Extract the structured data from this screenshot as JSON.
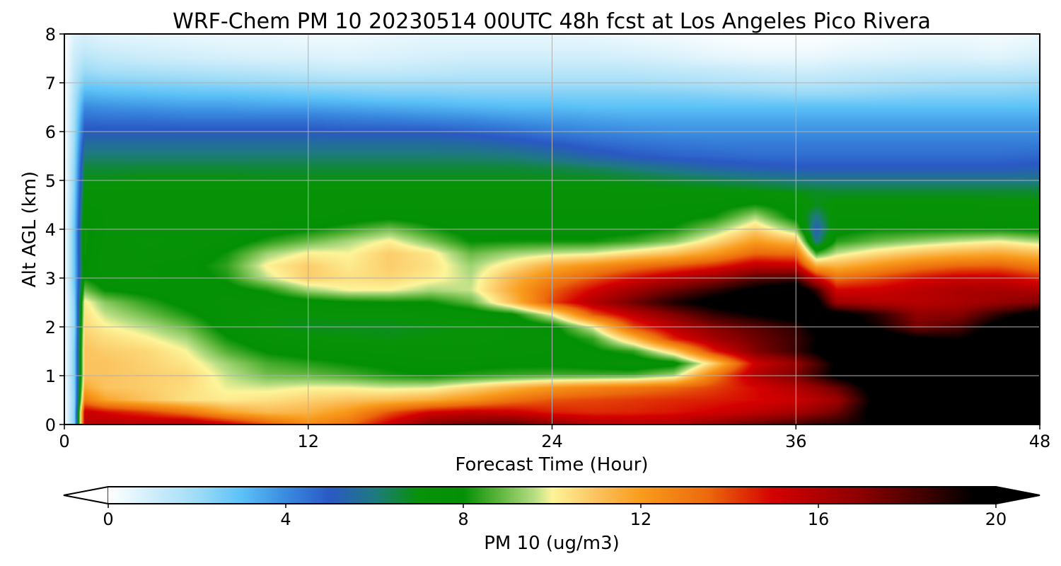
{
  "chart_data": {
    "type": "heatmap",
    "title": "WRF-Chem PM 10  20230514 00UTC 48h fcst at Los Angeles Pico Rivera",
    "xlabel": "Forecast Time (Hour)",
    "ylabel": "Alt AGL (km)",
    "xlim": [
      0,
      48
    ],
    "ylim": [
      0,
      8
    ],
    "xticks": [
      0,
      12,
      24,
      36,
      48
    ],
    "yticks": [
      0,
      1,
      2,
      3,
      4,
      5,
      6,
      7,
      8
    ],
    "grid": true,
    "x": [
      0,
      0.5,
      1,
      2,
      4,
      6,
      8,
      10,
      12,
      14,
      16,
      18,
      20,
      22,
      24,
      26,
      28,
      30,
      32,
      34,
      36,
      37,
      38,
      40,
      42,
      44,
      46,
      48
    ],
    "y": [
      0,
      0.25,
      0.5,
      0.75,
      1,
      1.25,
      1.5,
      1.75,
      2,
      2.25,
      2.5,
      2.75,
      3,
      3.25,
      3.5,
      3.75,
      4,
      4.25,
      4.5,
      4.75,
      5,
      5.25,
      5.5,
      5.75,
      6,
      6.25,
      6.5,
      6.75,
      7,
      7.25,
      7.5,
      7.75,
      8
    ],
    "z": [
      [
        0.0,
        2.4,
        15.6,
        15.9,
        16.0,
        16.3,
        15.3,
        13.8,
        12.5,
        13.3,
        15.3,
        17.1,
        17.6,
        17.9,
        16.9,
        16.1,
        15.9,
        16.0,
        16.8,
        17.7,
        18.3,
        18.7,
        18.9,
        19.6,
        20.6,
        20.9,
        20.6,
        20.6
      ],
      [
        0.0,
        2.4,
        15.4,
        14.9,
        14.2,
        13.2,
        11.8,
        11.2,
        11.4,
        12.2,
        13.8,
        15.0,
        15.4,
        15.2,
        14.6,
        14.4,
        14.5,
        14.7,
        15.1,
        15.6,
        16.3,
        16.8,
        17.5,
        20.2,
        21.1,
        20.8,
        20.5,
        20.6
      ],
      [
        0.0,
        2.3,
        12.9,
        11.8,
        11.0,
        10.4,
        10.2,
        10.4,
        10.7,
        11.0,
        11.2,
        11.6,
        12.3,
        13.2,
        13.8,
        14.0,
        14.2,
        14.4,
        14.6,
        14.9,
        15.3,
        15.8,
        16.5,
        20.0,
        21.0,
        20.8,
        20.5,
        20.5
      ],
      [
        0.0,
        2.4,
        11.7,
        11.0,
        10.8,
        10.5,
        9.9,
        9.8,
        10.0,
        10.0,
        9.8,
        9.9,
        10.6,
        11.4,
        12.2,
        12.7,
        13.1,
        13.5,
        14.1,
        14.9,
        15.9,
        16.7,
        17.6,
        20.4,
        21.1,
        20.8,
        20.6,
        20.6
      ],
      [
        0.0,
        2.5,
        11.0,
        11.0,
        10.8,
        10.6,
        9.7,
        9.0,
        8.9,
        8.6,
        8.2,
        8.0,
        8.3,
        8.5,
        8.6,
        8.6,
        8.7,
        9.5,
        13.1,
        15.9,
        17.3,
        18.5,
        19.8,
        21.2,
        21.1,
        20.8,
        20.6,
        20.6
      ],
      [
        0.0,
        2.5,
        11.0,
        11.0,
        10.7,
        10.3,
        9.4,
        8.6,
        8.3,
        8.0,
        7.8,
        7.6,
        7.7,
        7.8,
        7.8,
        7.6,
        7.2,
        7.6,
        10.8,
        15.2,
        16.7,
        18.1,
        19.7,
        21.0,
        21.0,
        20.8,
        20.6,
        20.6
      ],
      [
        0.0,
        2.5,
        11.0,
        10.8,
        10.6,
        10.0,
        8.7,
        7.9,
        7.6,
        7.5,
        7.4,
        7.3,
        7.2,
        7.3,
        7.5,
        7.8,
        8.4,
        10.8,
        14.6,
        17.1,
        18.5,
        19.6,
        21.1,
        21.0,
        20.8,
        20.8,
        20.6,
        20.6
      ],
      [
        0.0,
        2.4,
        10.8,
        10.5,
        10.1,
        9.5,
        8.1,
        7.3,
        7.1,
        7.0,
        6.9,
        7.0,
        7.1,
        7.2,
        7.5,
        8.4,
        11.1,
        14.5,
        16.3,
        17.5,
        18.5,
        19.4,
        20.4,
        20.8,
        19.7,
        19.4,
        20.5,
        20.5
      ],
      [
        0.0,
        2.3,
        10.6,
        10.1,
        9.6,
        8.9,
        7.6,
        7.0,
        6.8,
        6.8,
        6.8,
        6.9,
        7.0,
        7.2,
        7.7,
        9.9,
        14.0,
        15.8,
        17.1,
        17.9,
        18.7,
        19.9,
        20.1,
        19.3,
        17.4,
        18.1,
        20.3,
        20.5
      ],
      [
        0.0,
        2.3,
        10.4,
        9.7,
        9.0,
        8.2,
        7.4,
        7.0,
        7.0,
        7.1,
        7.1,
        7.2,
        7.3,
        7.8,
        10.0,
        13.7,
        15.6,
        17.1,
        18.6,
        19.5,
        20.3,
        20.3,
        20.2,
        18.8,
        16.8,
        17.0,
        18.8,
        20.3
      ],
      [
        0.0,
        2.4,
        10.2,
        9.2,
        8.4,
        7.7,
        7.4,
        7.3,
        7.6,
        7.9,
        8.0,
        8.0,
        8.8,
        11.1,
        14.0,
        15.9,
        17.5,
        19.0,
        20.1,
        20.7,
        21.1,
        20.1,
        16.4,
        15.9,
        15.8,
        16.1,
        16.6,
        17.2
      ],
      [
        0.0,
        2.6,
        9.0,
        8.0,
        7.7,
        7.5,
        7.6,
        8.2,
        9.4,
        10.0,
        10.0,
        9.5,
        9.7,
        11.6,
        13.6,
        15.0,
        16.4,
        17.6,
        18.7,
        19.8,
        20.8,
        18.6,
        15.0,
        15.2,
        15.7,
        16.1,
        16.2,
        16.0
      ],
      [
        0.0,
        2.8,
        8.0,
        7.4,
        7.4,
        7.6,
        8.2,
        9.7,
        10.8,
        10.4,
        10.6,
        10.2,
        9.6,
        11.3,
        12.7,
        13.8,
        14.9,
        15.8,
        16.7,
        18.0,
        18.3,
        15.1,
        13.3,
        14.0,
        14.8,
        15.3,
        15.3,
        14.5
      ],
      [
        0.0,
        2.8,
        7.9,
        7.3,
        7.5,
        7.7,
        8.4,
        10.1,
        10.8,
        10.2,
        10.8,
        10.4,
        9.4,
        10.4,
        11.6,
        12.3,
        13.1,
        13.7,
        14.4,
        15.6,
        15.4,
        11.6,
        11.4,
        12.2,
        13.0,
        13.5,
        13.6,
        12.9
      ],
      [
        0.0,
        2.8,
        8.1,
        7.3,
        7.2,
        7.4,
        8.1,
        9.4,
        10.1,
        10.0,
        10.8,
        10.3,
        8.9,
        9.4,
        9.7,
        9.9,
        10.5,
        11.1,
        12.1,
        13.5,
        13.3,
        8.5,
        9.7,
        10.5,
        11.1,
        11.5,
        11.7,
        11.2
      ],
      [
        0.0,
        2.8,
        8.1,
        7.4,
        7.1,
        7.2,
        7.5,
        8.3,
        8.9,
        9.5,
        10.1,
        9.1,
        8.0,
        8.1,
        8.1,
        8.1,
        8.5,
        9.2,
        10.5,
        12.0,
        11.2,
        5.8,
        8.3,
        8.9,
        9.3,
        9.7,
        10.0,
        9.5
      ],
      [
        0.0,
        2.8,
        8.1,
        7.5,
        7.3,
        7.3,
        7.3,
        7.6,
        7.9,
        8.4,
        9.0,
        8.2,
        7.6,
        7.6,
        7.6,
        7.6,
        7.7,
        8.1,
        9.2,
        10.7,
        9.1,
        5.1,
        7.7,
        8.0,
        8.0,
        8.0,
        8.0,
        7.8
      ],
      [
        0.0,
        2.7,
        7.8,
        7.5,
        7.5,
        7.5,
        7.4,
        7.4,
        7.4,
        7.6,
        7.8,
        7.6,
        7.6,
        7.6,
        7.6,
        7.6,
        7.6,
        7.7,
        8.1,
        9.5,
        7.7,
        5.9,
        7.5,
        7.5,
        7.3,
        7.3,
        7.4,
        7.4
      ],
      [
        0.0,
        2.6,
        7.5,
        7.4,
        7.4,
        7.4,
        7.4,
        7.4,
        7.4,
        7.4,
        7.4,
        7.4,
        7.4,
        7.4,
        7.4,
        7.4,
        7.4,
        7.5,
        7.6,
        8.1,
        7.5,
        6.8,
        7.2,
        7.2,
        7.2,
        7.2,
        7.1,
        7.1
      ],
      [
        0.0,
        2.5,
        7.2,
        7.2,
        7.2,
        7.2,
        7.2,
        7.2,
        7.2,
        7.2,
        7.2,
        7.2,
        7.2,
        7.2,
        7.2,
        7.2,
        7.2,
        7.2,
        7.2,
        7.1,
        6.9,
        6.8,
        6.7,
        6.7,
        6.7,
        6.7,
        6.7,
        6.7
      ],
      [
        0.0,
        2.4,
        6.9,
        6.9,
        7.0,
        7.0,
        7.0,
        6.9,
        6.9,
        6.9,
        6.9,
        6.9,
        6.9,
        6.9,
        6.9,
        6.9,
        6.8,
        6.6,
        6.4,
        6.2,
        6.0,
        5.9,
        5.9,
        5.9,
        5.9,
        5.9,
        5.9,
        5.9
      ],
      [
        0.0,
        2.3,
        6.6,
        6.6,
        6.6,
        6.6,
        6.6,
        6.6,
        6.6,
        6.6,
        6.6,
        6.6,
        6.6,
        6.6,
        6.5,
        6.3,
        6.0,
        5.7,
        5.4,
        5.2,
        5.1,
        5.1,
        5.1,
        5.1,
        5.1,
        5.1,
        5.1,
        5.2
      ],
      [
        0.0,
        2.2,
        6.1,
        6.1,
        6.1,
        6.1,
        6.1,
        6.1,
        6.1,
        6.1,
        6.1,
        6.1,
        6.1,
        6.0,
        5.7,
        5.3,
        5.0,
        4.8,
        4.7,
        4.6,
        4.6,
        4.6,
        4.6,
        4.6,
        4.6,
        4.6,
        4.6,
        4.7
      ],
      [
        0.0,
        2.1,
        5.6,
        5.6,
        5.6,
        5.6,
        5.6,
        5.6,
        5.6,
        5.6,
        5.6,
        5.6,
        5.5,
        5.3,
        5.0,
        4.7,
        4.5,
        4.4,
        4.3,
        4.3,
        4.3,
        4.3,
        4.3,
        4.3,
        4.3,
        4.3,
        4.3,
        4.3
      ],
      [
        0.0,
        2.0,
        5.1,
        5.1,
        5.1,
        5.1,
        5.1,
        5.1,
        5.1,
        5.0,
        5.0,
        5.0,
        4.8,
        4.6,
        4.3,
        4.1,
        4.0,
        3.9,
        3.9,
        3.9,
        3.9,
        3.9,
        3.9,
        3.9,
        3.9,
        3.9,
        3.9,
        3.9
      ],
      [
        0.0,
        1.9,
        4.6,
        4.5,
        4.5,
        4.4,
        4.4,
        4.4,
        4.4,
        4.3,
        4.2,
        4.1,
        4.0,
        3.8,
        3.7,
        3.6,
        3.5,
        3.5,
        3.5,
        3.5,
        3.5,
        3.5,
        3.5,
        3.5,
        3.5,
        3.5,
        3.5,
        3.5
      ],
      [
        0.0,
        1.8,
        4.0,
        3.9,
        3.8,
        3.7,
        3.7,
        3.6,
        3.6,
        3.5,
        3.4,
        3.3,
        3.2,
        3.1,
        3.1,
        3.0,
        3.0,
        3.0,
        3.0,
        3.0,
        3.0,
        3.0,
        3.0,
        3.0,
        3.0,
        3.0,
        3.0,
        3.0
      ],
      [
        0.0,
        1.7,
        3.3,
        3.2,
        3.1,
        3.0,
        3.0,
        2.9,
        2.8,
        2.7,
        2.6,
        2.6,
        2.5,
        2.5,
        2.5,
        2.5,
        2.5,
        2.5,
        2.4,
        2.3,
        2.2,
        2.2,
        2.2,
        2.3,
        2.4,
        2.4,
        2.4,
        2.5
      ],
      [
        0.0,
        1.5,
        2.6,
        2.5,
        2.4,
        2.3,
        2.2,
        2.1,
        2.0,
        1.9,
        1.9,
        1.9,
        1.9,
        1.9,
        1.9,
        1.9,
        1.9,
        1.8,
        1.7,
        1.6,
        1.5,
        1.5,
        1.6,
        1.7,
        1.8,
        1.9,
        1.9,
        2.0
      ],
      [
        0.0,
        1.3,
        2.0,
        1.8,
        1.7,
        1.6,
        1.5,
        1.4,
        1.3,
        1.2,
        1.2,
        1.3,
        1.4,
        1.4,
        1.4,
        1.4,
        1.4,
        1.3,
        1.2,
        1.1,
        1.0,
        1.0,
        1.1,
        1.2,
        1.3,
        1.3,
        1.3,
        1.4
      ],
      [
        0.0,
        1.1,
        1.5,
        1.3,
        1.1,
        1.0,
        0.9,
        0.8,
        0.8,
        0.7,
        0.8,
        0.9,
        1.0,
        1.0,
        1.0,
        1.0,
        0.9,
        0.8,
        0.6,
        0.5,
        0.5,
        0.5,
        0.6,
        0.7,
        0.8,
        0.8,
        0.7,
        0.9
      ],
      [
        0.0,
        0.9,
        1.1,
        0.9,
        0.8,
        0.7,
        0.6,
        0.6,
        0.5,
        0.5,
        0.6,
        0.7,
        0.7,
        0.7,
        0.7,
        0.7,
        0.6,
        0.5,
        0.3,
        0.2,
        0.2,
        0.2,
        0.3,
        0.4,
        0.5,
        0.5,
        0.4,
        0.6
      ],
      [
        0.0,
        0.7,
        0.8,
        0.6,
        0.5,
        0.4,
        0.4,
        0.4,
        0.3,
        0.3,
        0.4,
        0.5,
        0.5,
        0.5,
        0.5,
        0.4,
        0.3,
        0.2,
        0.1,
        0.1,
        0.1,
        0.1,
        0.1,
        0.2,
        0.3,
        0.3,
        0.2,
        0.4
      ]
    ],
    "colorbar": {
      "label": "PM 10  (ug/m3)",
      "min": 0,
      "max": 20,
      "ticks": [
        0,
        4,
        8,
        12,
        16,
        20
      ],
      "extend": "both",
      "orientation": "horizontal",
      "stops": [
        [
          0,
          "#ffffff"
        ],
        [
          2,
          "#9fdcf6"
        ],
        [
          3,
          "#5cc2f7"
        ],
        [
          4,
          "#3a8be0"
        ],
        [
          5,
          "#2a59c5"
        ],
        [
          6,
          "#1e7a80"
        ],
        [
          7,
          "#079207"
        ],
        [
          8,
          "#049004"
        ],
        [
          8.8,
          "#5db53c"
        ],
        [
          9.6,
          "#b6dd84"
        ],
        [
          10,
          "#fdf59a"
        ],
        [
          11,
          "#fbc35f"
        ],
        [
          12,
          "#f99c1c"
        ],
        [
          13.5,
          "#ec6a0c"
        ],
        [
          15,
          "#d40000"
        ],
        [
          17,
          "#8a0000"
        ],
        [
          18.5,
          "#3a0000"
        ],
        [
          19.5,
          "#000000"
        ],
        [
          20,
          "#000000"
        ]
      ]
    }
  }
}
